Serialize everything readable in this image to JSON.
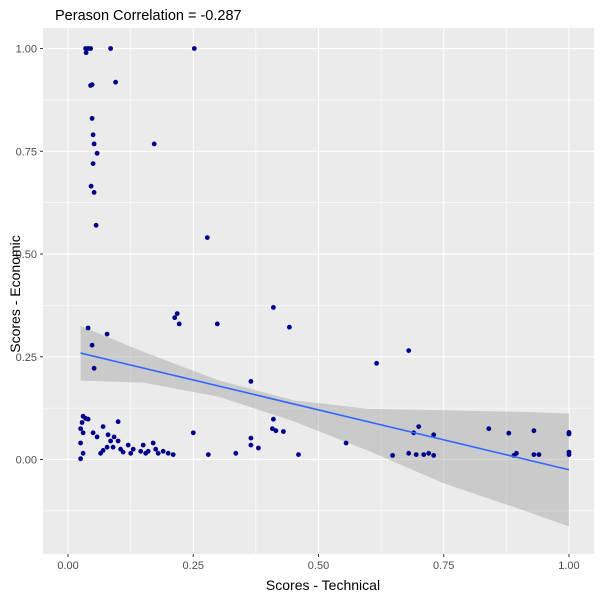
{
  "chart_data": {
    "type": "scatter",
    "title": "Perason Correlation = -0.287",
    "xlabel": "Scores - Technical",
    "ylabel": "Scores - Economic",
    "xlim": [
      -0.05,
      1.05
    ],
    "ylim": [
      -0.23,
      1.05
    ],
    "x_ticks": [
      0,
      0.25,
      0.5,
      0.75,
      1
    ],
    "x_tick_labels": [
      "0.00",
      "0.25",
      "0.50",
      "0.75",
      "1.00"
    ],
    "y_ticks": [
      0,
      0.25,
      0.5,
      0.75,
      1
    ],
    "y_tick_labels": [
      "0.00",
      "0.25",
      "0.50",
      "0.75",
      "1.00"
    ],
    "grid": true,
    "colors": {
      "panel": "#ebebeb",
      "grid": "#ffffff",
      "points": "#00008b",
      "fit_line": "#3366ff",
      "ribbon": "#999999"
    },
    "points": [
      {
        "x": 0.035,
        "y": 1.0
      },
      {
        "x": 0.04,
        "y": 1.0
      },
      {
        "x": 0.045,
        "y": 1.0
      },
      {
        "x": 0.036,
        "y": 0.99
      },
      {
        "x": 0.085,
        "y": 1.0
      },
      {
        "x": 0.252,
        "y": 1.0
      },
      {
        "x": 0.095,
        "y": 0.918
      },
      {
        "x": 0.045,
        "y": 0.91
      },
      {
        "x": 0.048,
        "y": 0.912
      },
      {
        "x": 0.048,
        "y": 0.83
      },
      {
        "x": 0.05,
        "y": 0.79
      },
      {
        "x": 0.052,
        "y": 0.768
      },
      {
        "x": 0.058,
        "y": 0.745
      },
      {
        "x": 0.172,
        "y": 0.768
      },
      {
        "x": 0.05,
        "y": 0.72
      },
      {
        "x": 0.046,
        "y": 0.665
      },
      {
        "x": 0.052,
        "y": 0.65
      },
      {
        "x": 0.056,
        "y": 0.57
      },
      {
        "x": 0.278,
        "y": 0.54
      },
      {
        "x": 0.41,
        "y": 0.37
      },
      {
        "x": 0.218,
        "y": 0.355
      },
      {
        "x": 0.213,
        "y": 0.345
      },
      {
        "x": 0.222,
        "y": 0.33
      },
      {
        "x": 0.298,
        "y": 0.33
      },
      {
        "x": 0.442,
        "y": 0.322
      },
      {
        "x": 0.04,
        "y": 0.32
      },
      {
        "x": 0.078,
        "y": 0.305
      },
      {
        "x": 0.048,
        "y": 0.278
      },
      {
        "x": 0.68,
        "y": 0.265
      },
      {
        "x": 0.616,
        "y": 0.234
      },
      {
        "x": 0.052,
        "y": 0.222
      },
      {
        "x": 0.365,
        "y": 0.19
      },
      {
        "x": 0.03,
        "y": 0.105
      },
      {
        "x": 0.035,
        "y": 0.1
      },
      {
        "x": 0.04,
        "y": 0.098
      },
      {
        "x": 0.028,
        "y": 0.09
      },
      {
        "x": 0.1,
        "y": 0.092
      },
      {
        "x": 0.41,
        "y": 0.098
      },
      {
        "x": 0.408,
        "y": 0.075
      },
      {
        "x": 0.415,
        "y": 0.07
      },
      {
        "x": 0.07,
        "y": 0.08
      },
      {
        "x": 0.025,
        "y": 0.075
      },
      {
        "x": 0.84,
        "y": 0.075
      },
      {
        "x": 0.7,
        "y": 0.08
      },
      {
        "x": 0.93,
        "y": 0.07
      },
      {
        "x": 1.0,
        "y": 0.066
      },
      {
        "x": 1.0,
        "y": 0.062
      },
      {
        "x": 0.25,
        "y": 0.065
      },
      {
        "x": 0.05,
        "y": 0.065
      },
      {
        "x": 0.88,
        "y": 0.064
      },
      {
        "x": 0.69,
        "y": 0.065
      },
      {
        "x": 0.73,
        "y": 0.06
      },
      {
        "x": 0.43,
        "y": 0.068
      },
      {
        "x": 0.03,
        "y": 0.065
      },
      {
        "x": 0.08,
        "y": 0.06
      },
      {
        "x": 0.092,
        "y": 0.055
      },
      {
        "x": 0.058,
        "y": 0.055
      },
      {
        "x": 0.365,
        "y": 0.052
      },
      {
        "x": 0.085,
        "y": 0.045
      },
      {
        "x": 0.1,
        "y": 0.045
      },
      {
        "x": 0.025,
        "y": 0.04
      },
      {
        "x": 0.555,
        "y": 0.04
      },
      {
        "x": 0.365,
        "y": 0.035
      },
      {
        "x": 0.17,
        "y": 0.04
      },
      {
        "x": 0.12,
        "y": 0.035
      },
      {
        "x": 0.15,
        "y": 0.035
      },
      {
        "x": 0.078,
        "y": 0.03
      },
      {
        "x": 0.09,
        "y": 0.03
      },
      {
        "x": 0.38,
        "y": 0.028
      },
      {
        "x": 0.105,
        "y": 0.025
      },
      {
        "x": 0.13,
        "y": 0.025
      },
      {
        "x": 0.145,
        "y": 0.02
      },
      {
        "x": 0.16,
        "y": 0.02
      },
      {
        "x": 0.175,
        "y": 0.025
      },
      {
        "x": 0.19,
        "y": 0.02
      },
      {
        "x": 0.07,
        "y": 0.022
      },
      {
        "x": 0.11,
        "y": 0.018
      },
      {
        "x": 0.125,
        "y": 0.015
      },
      {
        "x": 0.155,
        "y": 0.015
      },
      {
        "x": 0.18,
        "y": 0.015
      },
      {
        "x": 0.2,
        "y": 0.015
      },
      {
        "x": 0.21,
        "y": 0.012
      },
      {
        "x": 0.03,
        "y": 0.015
      },
      {
        "x": 0.065,
        "y": 0.015
      },
      {
        "x": 0.28,
        "y": 0.012
      },
      {
        "x": 0.335,
        "y": 0.015
      },
      {
        "x": 0.46,
        "y": 0.012
      },
      {
        "x": 0.648,
        "y": 0.01
      },
      {
        "x": 0.68,
        "y": 0.015
      },
      {
        "x": 0.695,
        "y": 0.012
      },
      {
        "x": 0.71,
        "y": 0.012
      },
      {
        "x": 0.72,
        "y": 0.015
      },
      {
        "x": 0.73,
        "y": 0.01
      },
      {
        "x": 0.89,
        "y": 0.01
      },
      {
        "x": 0.895,
        "y": 0.015
      },
      {
        "x": 0.93,
        "y": 0.012
      },
      {
        "x": 0.94,
        "y": 0.012
      },
      {
        "x": 1.0,
        "y": 0.018
      },
      {
        "x": 1.0,
        "y": 0.012
      },
      {
        "x": 0.025,
        "y": 0.002
      }
    ],
    "fit_line": {
      "x": [
        0.025,
        1.0
      ],
      "y": [
        0.259,
        -0.025
      ]
    },
    "confidence_band": {
      "x": [
        0.025,
        0.15,
        0.3,
        0.45,
        0.6,
        0.75,
        0.9,
        1.0
      ],
      "upper": [
        0.325,
        0.262,
        0.193,
        0.144,
        0.123,
        0.12,
        0.116,
        0.112
      ],
      "lower": [
        0.192,
        0.187,
        0.153,
        0.093,
        0.021,
        -0.058,
        -0.12,
        -0.163
      ]
    }
  }
}
